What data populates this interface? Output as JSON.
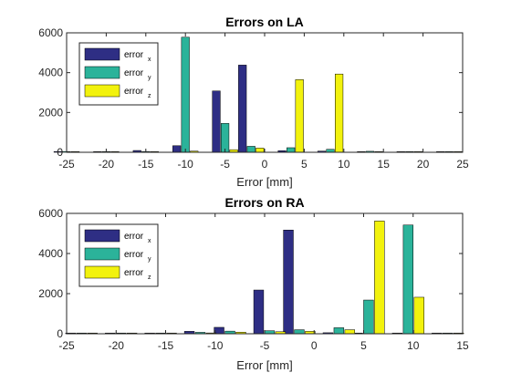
{
  "colors": {
    "error_x": "#2e2e84",
    "error_y": "#2bb39a",
    "error_z": "#f2f20d"
  },
  "chart_data": [
    {
      "type": "bar",
      "title": "Errors on LA",
      "xlabel": "Error [mm]",
      "ylabel": "",
      "xlim": [
        -25,
        25
      ],
      "ylim": [
        0,
        6000
      ],
      "xticks": [
        -25,
        -20,
        -15,
        -10,
        -5,
        0,
        5,
        10,
        15,
        20,
        25
      ],
      "yticks": [
        0,
        2000,
        4000,
        6000
      ],
      "legend": "top-left",
      "categories": [
        -25,
        -20,
        -15,
        -10,
        -5,
        -1.7,
        3.3,
        8.3,
        13.3,
        18.3,
        23.3
      ],
      "series": [
        {
          "name": "error",
          "sub": "x",
          "color_key": "error_x",
          "values": [
            0,
            20,
            90,
            330,
            3080,
            4380,
            80,
            60,
            10,
            10,
            10
          ]
        },
        {
          "name": "error",
          "sub": "y",
          "color_key": "error_y",
          "values": [
            0,
            20,
            40,
            5780,
            1450,
            300,
            230,
            150,
            50,
            20,
            10
          ]
        },
        {
          "name": "error",
          "sub": "z",
          "color_key": "error_z",
          "values": [
            0,
            10,
            10,
            60,
            130,
            210,
            3650,
            3930,
            20,
            10,
            10
          ]
        }
      ]
    },
    {
      "type": "bar",
      "title": "Errors on RA",
      "xlabel": "Error [mm]",
      "ylabel": "",
      "xlim": [
        -25,
        15
      ],
      "ylim": [
        0,
        6000
      ],
      "xticks": [
        -25,
        -20,
        -15,
        -10,
        -5,
        0,
        5,
        10,
        15
      ],
      "yticks": [
        0,
        2000,
        4000,
        6000
      ],
      "legend": "top-left",
      "categories": [
        -23.5,
        -19.5,
        -15.5,
        -11.5,
        -8.5,
        -4.5,
        -1.5,
        2.5,
        5.5,
        9.5,
        13.5
      ],
      "series": [
        {
          "name": "error",
          "sub": "x",
          "color_key": "error_x",
          "values": [
            0,
            10,
            30,
            120,
            320,
            2180,
            5170,
            50,
            10,
            20,
            0
          ]
        },
        {
          "name": "error",
          "sub": "y",
          "color_key": "error_y",
          "values": [
            0,
            10,
            20,
            70,
            130,
            150,
            200,
            300,
            1680,
            5420,
            0
          ]
        },
        {
          "name": "error",
          "sub": "z",
          "color_key": "error_z",
          "values": [
            0,
            0,
            10,
            40,
            80,
            100,
            120,
            200,
            5620,
            1820,
            0
          ]
        }
      ]
    }
  ]
}
